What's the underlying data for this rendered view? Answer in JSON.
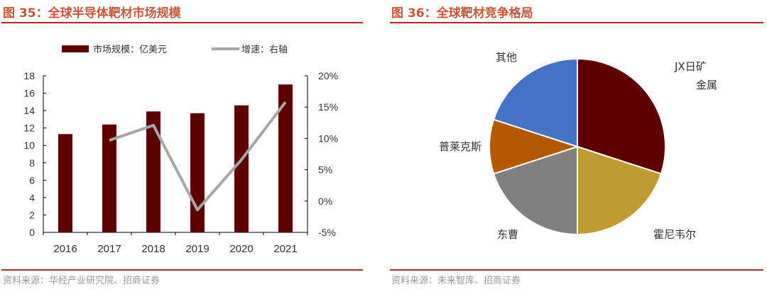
{
  "left": {
    "title": "图 35：全球半导体靶材市场规模",
    "source": "资料来源：华经产业研究院、招商证券"
  },
  "right": {
    "title": "图 36：全球靶材竞争格局",
    "source": "资料来源：未来智库、招商证券"
  },
  "chart_data": [
    {
      "type": "bar+line",
      "categories": [
        "2016",
        "2017",
        "2018",
        "2019",
        "2020",
        "2021"
      ],
      "series": [
        {
          "name": "市场规模：亿美元",
          "type": "bar",
          "axis": "left",
          "color": "#5c0000",
          "values": [
            11.3,
            12.4,
            13.9,
            13.7,
            14.6,
            17.0
          ]
        },
        {
          "name": "增速：右轴",
          "type": "line",
          "axis": "right",
          "color": "#a6a6a6",
          "values": [
            null,
            9.7,
            12.1,
            -1.4,
            6.6,
            15.8
          ]
        }
      ],
      "ylim": [
        0,
        18
      ],
      "yticks": [
        0,
        2,
        4,
        6,
        8,
        10,
        12,
        14,
        16,
        18
      ],
      "y2lim": [
        -5,
        20
      ],
      "y2ticks": [
        "-5%",
        "0%",
        "5%",
        "10%",
        "15%",
        "20%"
      ],
      "legend": "top",
      "grid": false
    },
    {
      "type": "pie",
      "labels": [
        "JX日矿金属",
        "霍尼韦尔",
        "东曹",
        "普莱克斯",
        "其他"
      ],
      "values": [
        30,
        20,
        20,
        10,
        20
      ],
      "colors": [
        "#5c0000",
        "#c09a35",
        "#808080",
        "#b35900",
        "#4472c4"
      ]
    }
  ]
}
